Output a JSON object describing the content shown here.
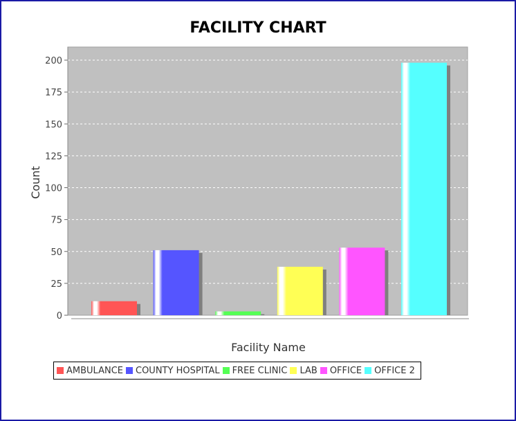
{
  "chart_data": {
    "type": "bar",
    "title": "FACILITY CHART",
    "xlabel": "Facility Name",
    "ylabel": "Count",
    "ylim": [
      0,
      200
    ],
    "yticks": [
      0,
      25,
      50,
      75,
      100,
      125,
      150,
      175,
      200
    ],
    "grid": true,
    "legend_position": "bottom-left",
    "categories": [
      "AMBULANCE",
      "COUNTY HOSPITAL",
      "FREE CLINIC",
      "LAB",
      "OFFICE",
      "OFFICE 2"
    ],
    "values": [
      11,
      51,
      3,
      38,
      53,
      198
    ],
    "colors": [
      "#ff5555",
      "#5555ff",
      "#55ff55",
      "#ffff55",
      "#ff55ff",
      "#55ffff"
    ],
    "plot_background": "#c0c0c0"
  }
}
